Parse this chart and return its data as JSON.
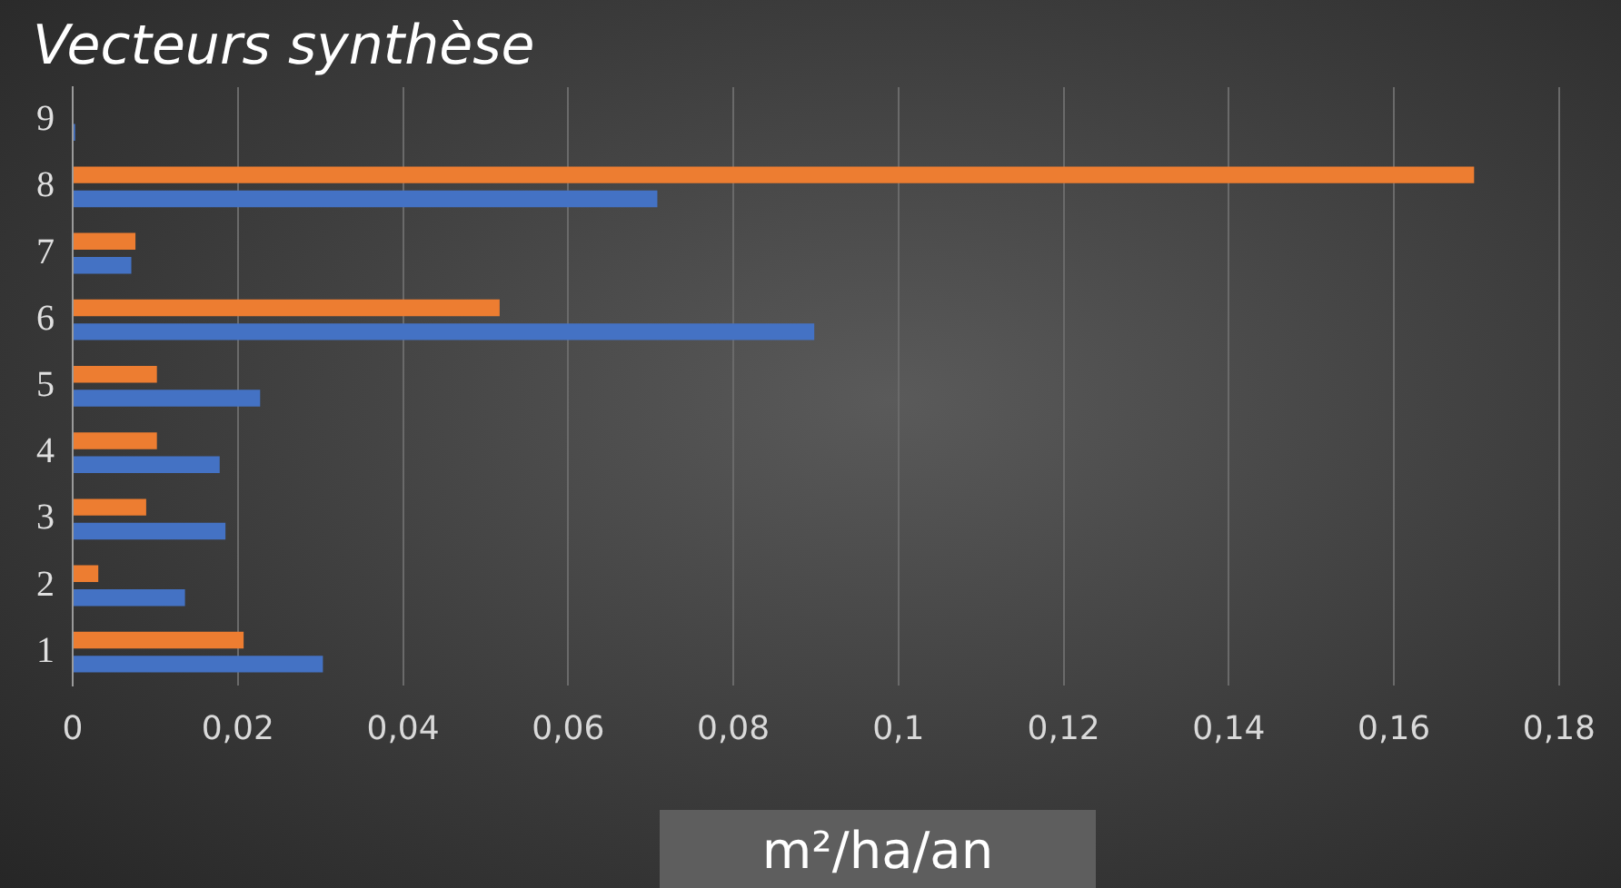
{
  "chart_data": {
    "type": "bar",
    "orientation": "horizontal",
    "title": "Vecteurs synthèse",
    "xlabel": "m²/ha/an",
    "categories": [
      "9",
      "8",
      "7",
      "6",
      "5",
      "4",
      "3",
      "2",
      "1"
    ],
    "series": [
      {
        "color": "#ed7d31",
        "values": [
          0,
          0.1697,
          0.0076,
          0.0517,
          0.0102,
          0.0102,
          0.0089,
          0.0031,
          0.0207
        ]
      },
      {
        "color": "#4472c4",
        "values": [
          0.0003,
          0.0708,
          0.0071,
          0.0898,
          0.0227,
          0.0178,
          0.0185,
          0.0136,
          0.0303
        ]
      }
    ],
    "xlim": [
      0,
      0.18
    ],
    "xticks": [
      0,
      {
        "value": 0.02,
        "label": "0,02"
      },
      {
        "value": 0.04,
        "label": "0,04"
      },
      {
        "value": 0.06,
        "label": "0,06"
      },
      {
        "value": 0.08,
        "label": "0,08"
      },
      {
        "value": 0.1,
        "label": "0,1"
      },
      {
        "value": 0.12,
        "label": "0,12"
      },
      {
        "value": 0.14,
        "label": "0,14"
      },
      {
        "value": 0.16,
        "label": "0,16"
      },
      {
        "value": 0.18,
        "label": "0,18"
      }
    ],
    "grid": "x",
    "legend": false
  }
}
